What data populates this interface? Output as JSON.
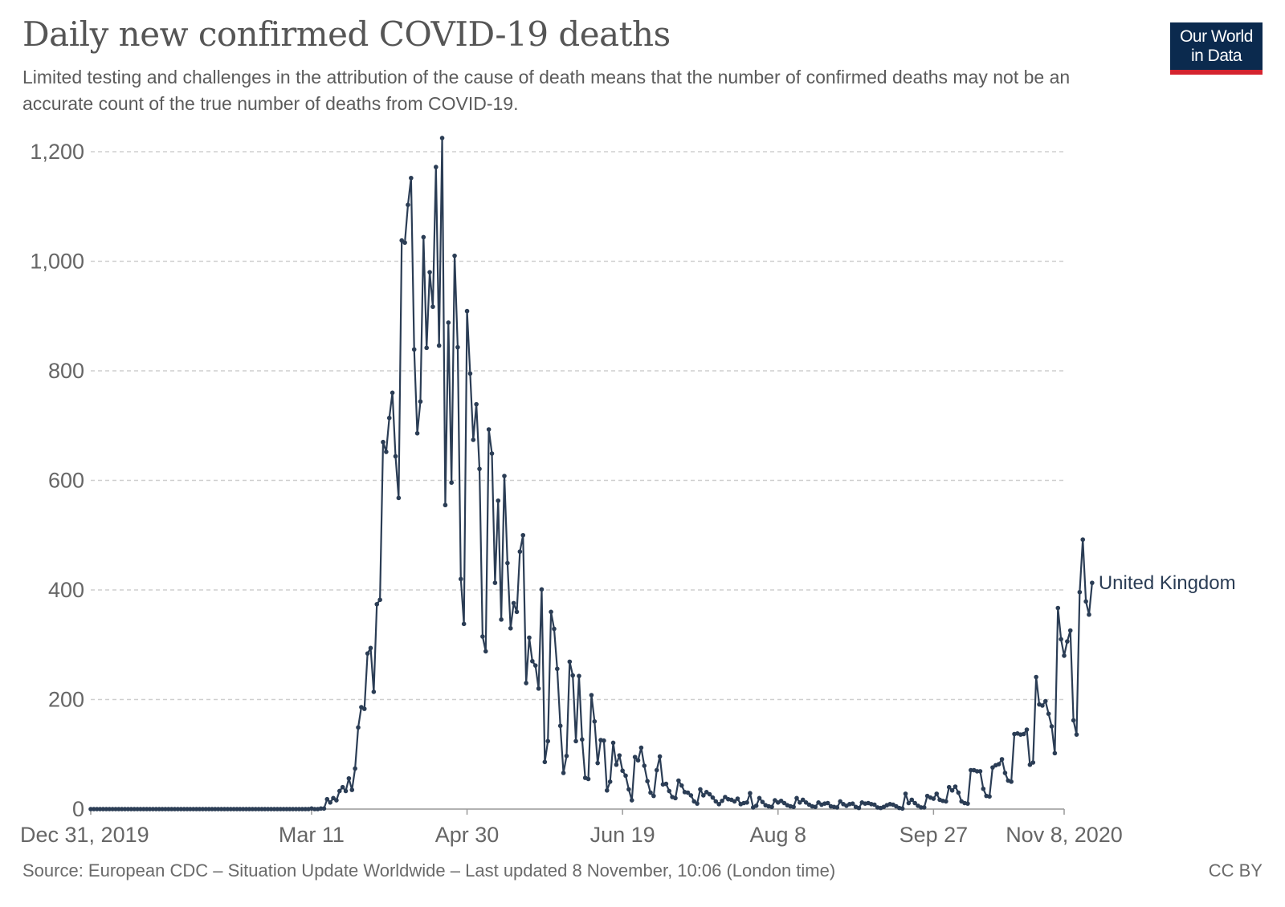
{
  "header": {
    "title": "Daily new confirmed COVID-19 deaths",
    "subtitle": "Limited testing and challenges in the attribution of the cause of death means that the number of confirmed deaths may not be an accurate count of the true number of deaths from COVID-19.",
    "logo_line1": "Our World",
    "logo_line2": "in Data"
  },
  "footer": {
    "source": "Source: European CDC – Situation Update Worldwide – Last updated 8 November, 10:06 (London time)",
    "license": "CC BY"
  },
  "colors": {
    "series": "#2b3d55",
    "logo_background": "#0b2a4e",
    "logo_accent": "#d4232e",
    "grid": "#cfcfcf"
  },
  "chart_data": {
    "type": "line",
    "title": "Daily new confirmed COVID-19 deaths",
    "xlabel": "",
    "ylabel": "",
    "x_start": "Dec 31, 2019",
    "x_end": "Nov 8, 2020",
    "ylim": [
      0,
      1200
    ],
    "grid": "horizontal",
    "y_ticks": [
      0,
      200,
      400,
      600,
      800,
      1000,
      1200
    ],
    "y_tick_labels": [
      "0",
      "200",
      "400",
      "600",
      "800",
      "1,000",
      "1,200"
    ],
    "x_ticks": [
      {
        "date": "2019-12-31",
        "label": "Dec 31, 2019"
      },
      {
        "date": "2020-03-11",
        "label": "Mar 11"
      },
      {
        "date": "2020-04-30",
        "label": "Apr 30"
      },
      {
        "date": "2020-06-19",
        "label": "Jun 19"
      },
      {
        "date": "2020-08-08",
        "label": "Aug 8"
      },
      {
        "date": "2020-09-27",
        "label": "Sep 27"
      },
      {
        "date": "2020-11-08",
        "label": "Nov 8, 2020"
      }
    ],
    "series": [
      {
        "name": "United Kingdom",
        "color": "#2b3d55",
        "start_date": "2019-12-31",
        "values": [
          0,
          0,
          0,
          0,
          0,
          0,
          0,
          0,
          0,
          0,
          0,
          0,
          0,
          0,
          0,
          0,
          0,
          0,
          0,
          0,
          0,
          0,
          0,
          0,
          0,
          0,
          0,
          0,
          0,
          0,
          0,
          0,
          0,
          0,
          0,
          0,
          0,
          0,
          0,
          0,
          0,
          0,
          0,
          0,
          0,
          0,
          0,
          0,
          0,
          0,
          0,
          0,
          0,
          0,
          0,
          0,
          0,
          0,
          0,
          0,
          0,
          0,
          0,
          0,
          0,
          0,
          0,
          0,
          0,
          0,
          0,
          1,
          0,
          0,
          1,
          1,
          18,
          12,
          20,
          16,
          33,
          40,
          33,
          56,
          35,
          74,
          149,
          186,
          183,
          284,
          294,
          214,
          374,
          382,
          670,
          652,
          714,
          760,
          644,
          568,
          1038,
          1034,
          1103,
          1152,
          839,
          686,
          744,
          1044,
          842,
          980,
          917,
          1172,
          846,
          1225,
          555,
          888,
          596,
          1010,
          843,
          420,
          338,
          909,
          795,
          674,
          739,
          621,
          315,
          288,
          693,
          649,
          413,
          563,
          346,
          608,
          449,
          330,
          376,
          360,
          470,
          500,
          230,
          313,
          270,
          262,
          220,
          401,
          86,
          124,
          360,
          329,
          256,
          152,
          66,
          97,
          269,
          244,
          124,
          243,
          127,
          57,
          55,
          208,
          160,
          84,
          126,
          125,
          34,
          50,
          121,
          81,
          98,
          70,
          61,
          36,
          16,
          95,
          89,
          112,
          79,
          51,
          30,
          24,
          71,
          96,
          45,
          46,
          33,
          22,
          20,
          52,
          43,
          31,
          30,
          25,
          14,
          10,
          36,
          25,
          31,
          27,
          21,
          14,
          9,
          15,
          22,
          18,
          17,
          14,
          19,
          9,
          11,
          12,
          29,
          3,
          6,
          20,
          13,
          7,
          5,
          4,
          16,
          12,
          15,
          11,
          7,
          5,
          4,
          20,
          12,
          17,
          12,
          8,
          5,
          4,
          12,
          8,
          10,
          11,
          5,
          4,
          3,
          14,
          9,
          6,
          9,
          10,
          4,
          2,
          12,
          10,
          11,
          9,
          8,
          3,
          2,
          4,
          7,
          9,
          8,
          5,
          2,
          1,
          28,
          11,
          17,
          11,
          6,
          3,
          3,
          24,
          21,
          19,
          28,
          17,
          15,
          14,
          40,
          34,
          41,
          30,
          14,
          11,
          10,
          71,
          71,
          69,
          69,
          37,
          24,
          23,
          76,
          80,
          82,
          91,
          66,
          52,
          50,
          137,
          138,
          136,
          137,
          145,
          81,
          85,
          241,
          191,
          189,
          197,
          174,
          151,
          102,
          367,
          310,
          280,
          306,
          326,
          162,
          136,
          396,
          492,
          379,
          355,
          413
        ]
      }
    ]
  }
}
